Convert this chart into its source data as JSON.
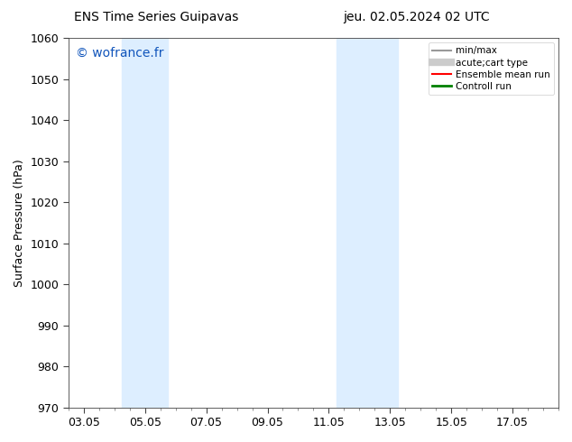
{
  "title_left": "ENS Time Series Guipavas",
  "title_right": "jeu. 02.05.2024 02 UTC",
  "ylabel": "Surface Pressure (hPa)",
  "ylim": [
    970,
    1060
  ],
  "yticks": [
    970,
    980,
    990,
    1000,
    1010,
    1020,
    1030,
    1040,
    1050,
    1060
  ],
  "xtick_labels": [
    "03.05",
    "05.05",
    "07.05",
    "09.05",
    "11.05",
    "13.05",
    "15.05",
    "17.05"
  ],
  "xtick_positions": [
    0,
    2,
    4,
    6,
    8,
    10,
    12,
    14
  ],
  "xmin": -0.5,
  "xmax": 15.5,
  "shaded_regions": [
    {
      "xmin": 1.25,
      "xmax": 2.75
    },
    {
      "xmin": 8.25,
      "xmax": 10.25
    }
  ],
  "shaded_color": "#ddeeff",
  "watermark": "© wofrance.fr",
  "watermark_color": "#1155bb",
  "legend_entries": [
    {
      "label": "min/max",
      "color": "#999999",
      "lw": 1.5,
      "style": "line"
    },
    {
      "label": "acute;cart type",
      "color": "#cccccc",
      "lw": 6,
      "style": "line"
    },
    {
      "label": "Ensemble mean run",
      "color": "red",
      "lw": 1.5,
      "style": "line"
    },
    {
      "label": "Controll run",
      "color": "green",
      "lw": 2.0,
      "style": "line"
    }
  ],
  "background_color": "#ffffff",
  "grid_color": "#e0e0e0",
  "font_size": 9,
  "title_font_size": 10,
  "watermark_font_size": 10
}
